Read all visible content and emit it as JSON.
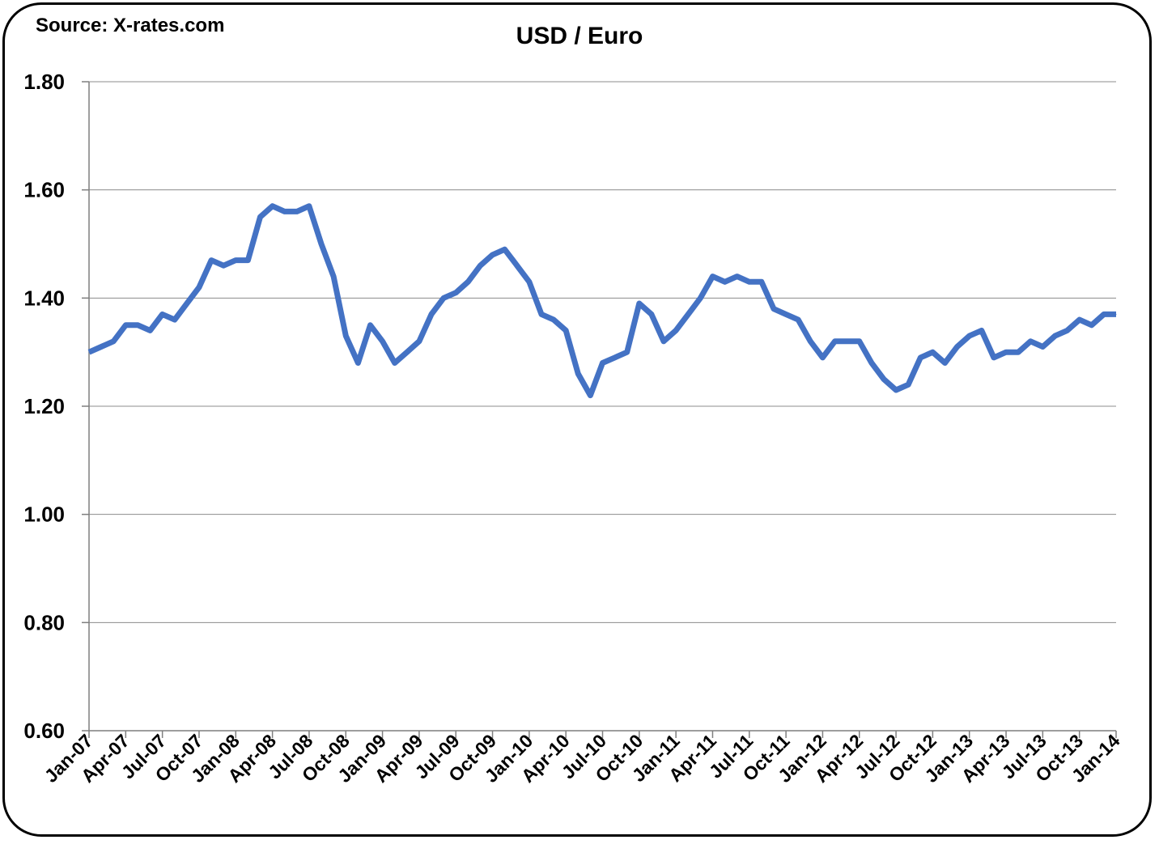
{
  "source_note": "Source: X-rates.com",
  "colors": {
    "line": "#4472C4",
    "grid": "#8C8C8C",
    "axis": "#7F7F7F"
  },
  "chart_data": {
    "type": "line",
    "title": "USD / Euro",
    "xlabel": "",
    "ylabel": "",
    "ylim": [
      0.6,
      1.8
    ],
    "yticks": [
      0.6,
      0.8,
      1.0,
      1.2,
      1.4,
      1.6,
      1.8
    ],
    "ytick_labels": [
      "0.60",
      "0.80",
      "1.00",
      "1.20",
      "1.40",
      "1.60",
      "1.80"
    ],
    "grid": "horizontal",
    "legend": "none",
    "x_tick_labels": [
      "Jan-07",
      "Apr-07",
      "Jul-07",
      "Oct-07",
      "Jan-08",
      "Apr-08",
      "Jul-08",
      "Oct-08",
      "Jan-09",
      "Apr-09",
      "Jul-09",
      "Oct-09",
      "Jan-10",
      "Apr-10",
      "Jul-10",
      "Oct-10",
      "Jan-11",
      "Apr-11",
      "Jul-11",
      "Oct-11",
      "Jan-12",
      "Apr-12",
      "Jul-12",
      "Oct-12",
      "Jan-13",
      "Apr-13",
      "Jul-13",
      "Oct-13",
      "Jan-14"
    ],
    "x": [
      "Jan-07",
      "Feb-07",
      "Mar-07",
      "Apr-07",
      "May-07",
      "Jun-07",
      "Jul-07",
      "Aug-07",
      "Sep-07",
      "Oct-07",
      "Nov-07",
      "Dec-07",
      "Jan-08",
      "Feb-08",
      "Mar-08",
      "Apr-08",
      "May-08",
      "Jun-08",
      "Jul-08",
      "Aug-08",
      "Sep-08",
      "Oct-08",
      "Nov-08",
      "Dec-08",
      "Jan-09",
      "Feb-09",
      "Mar-09",
      "Apr-09",
      "May-09",
      "Jun-09",
      "Jul-09",
      "Aug-09",
      "Sep-09",
      "Oct-09",
      "Nov-09",
      "Dec-09",
      "Jan-10",
      "Feb-10",
      "Mar-10",
      "Apr-10",
      "May-10",
      "Jun-10",
      "Jul-10",
      "Aug-10",
      "Sep-10",
      "Oct-10",
      "Nov-10",
      "Dec-10",
      "Jan-11",
      "Feb-11",
      "Mar-11",
      "Apr-11",
      "May-11",
      "Jun-11",
      "Jul-11",
      "Aug-11",
      "Sep-11",
      "Oct-11",
      "Nov-11",
      "Dec-11",
      "Jan-12",
      "Feb-12",
      "Mar-12",
      "Apr-12",
      "May-12",
      "Jun-12",
      "Jul-12",
      "Aug-12",
      "Sep-12",
      "Oct-12",
      "Nov-12",
      "Dec-12",
      "Jan-13",
      "Feb-13",
      "Mar-13",
      "Apr-13",
      "May-13",
      "Jun-13",
      "Jul-13",
      "Aug-13",
      "Sep-13",
      "Oct-13",
      "Nov-13",
      "Dec-13",
      "Jan-14"
    ],
    "series": [
      {
        "values": [
          1.3,
          1.31,
          1.32,
          1.35,
          1.35,
          1.34,
          1.37,
          1.36,
          1.39,
          1.42,
          1.47,
          1.46,
          1.47,
          1.47,
          1.55,
          1.57,
          1.56,
          1.56,
          1.57,
          1.5,
          1.44,
          1.33,
          1.28,
          1.35,
          1.32,
          1.28,
          1.3,
          1.32,
          1.37,
          1.4,
          1.41,
          1.43,
          1.46,
          1.48,
          1.49,
          1.46,
          1.43,
          1.37,
          1.36,
          1.34,
          1.26,
          1.22,
          1.28,
          1.29,
          1.3,
          1.39,
          1.37,
          1.32,
          1.34,
          1.37,
          1.4,
          1.44,
          1.43,
          1.44,
          1.43,
          1.43,
          1.38,
          1.37,
          1.36,
          1.32,
          1.29,
          1.32,
          1.32,
          1.32,
          1.28,
          1.25,
          1.23,
          1.24,
          1.29,
          1.3,
          1.28,
          1.31,
          1.33,
          1.34,
          1.29,
          1.3,
          1.3,
          1.32,
          1.31,
          1.33,
          1.34,
          1.36,
          1.35,
          1.37,
          1.37
        ]
      }
    ]
  }
}
